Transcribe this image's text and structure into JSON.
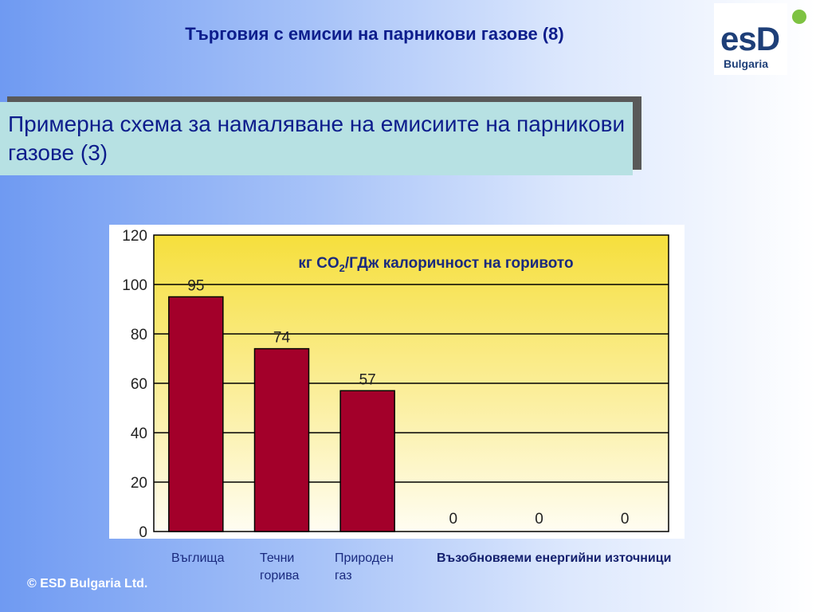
{
  "slide": {
    "title": "Търговия с емисии на парникови газове (8)",
    "subtitle": "Примерна схема за намаляване на емисиите на парникови газове (3)",
    "copyright": "© ESD Bulgaria Ltd."
  },
  "logo": {
    "main": "esD",
    "sub": "Bulgaria"
  },
  "chart_data": {
    "type": "bar",
    "title_parts": [
      "кг CO",
      "2",
      "/ГДж калоричност на горивото"
    ],
    "categories": [
      "Въглища",
      "Течни горива",
      "Природен газ",
      "",
      "",
      ""
    ],
    "category_labels": {
      "coal": "Въглища",
      "liquid_line1": "Течни",
      "liquid_line2": "горива",
      "gas_line1": "Природен",
      "gas_line2": "газ",
      "renewables": "Възобновяеми енергийни източници"
    },
    "values": [
      95,
      74,
      57,
      0,
      0,
      0
    ],
    "ylim": [
      0,
      120
    ],
    "yticks": [
      0,
      20,
      40,
      60,
      80,
      100,
      120
    ],
    "grid": true,
    "bar_color": "#a3002a",
    "bg_top": "#f6df3c",
    "bg_bottom": "#fffdf2"
  }
}
